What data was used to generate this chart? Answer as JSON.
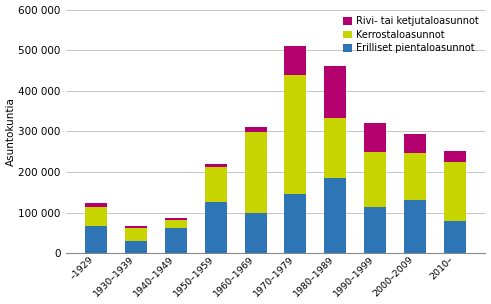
{
  "categories": [
    "–1929",
    "1930–1939",
    "1940–1949",
    "1950–1959",
    "1960–1969",
    "1970–1979",
    "1980–1989",
    "1990–1999",
    "2000–2009",
    "2010–"
  ],
  "erilliset": [
    68000,
    30000,
    63000,
    125000,
    98000,
    145000,
    185000,
    115000,
    130000,
    80000
  ],
  "kerrostalot": [
    47000,
    33000,
    18000,
    88000,
    200000,
    293000,
    148000,
    135000,
    118000,
    145000
  ],
  "rivi": [
    8000,
    3000,
    5000,
    7000,
    13000,
    73000,
    127000,
    70000,
    45000,
    27000
  ],
  "color_erilliset": "#2e75b6",
  "color_kerrostalot": "#c8d400",
  "color_rivi": "#b4006e",
  "ylabel": "Asuntokuntia",
  "ylim": [
    0,
    600000
  ],
  "yticks": [
    0,
    100000,
    200000,
    300000,
    400000,
    500000,
    600000
  ],
  "ytick_labels": [
    "0",
    "100 000",
    "200 000",
    "300 000",
    "400 000",
    "500 000",
    "600 000"
  ],
  "legend_labels": [
    "Rivi- tai ketjutaloasunnot",
    "Kerrostaloasunnot",
    "Erilliset pientaloasunnot"
  ],
  "grid_color": "#bbbbbb",
  "background_color": "#ffffff"
}
